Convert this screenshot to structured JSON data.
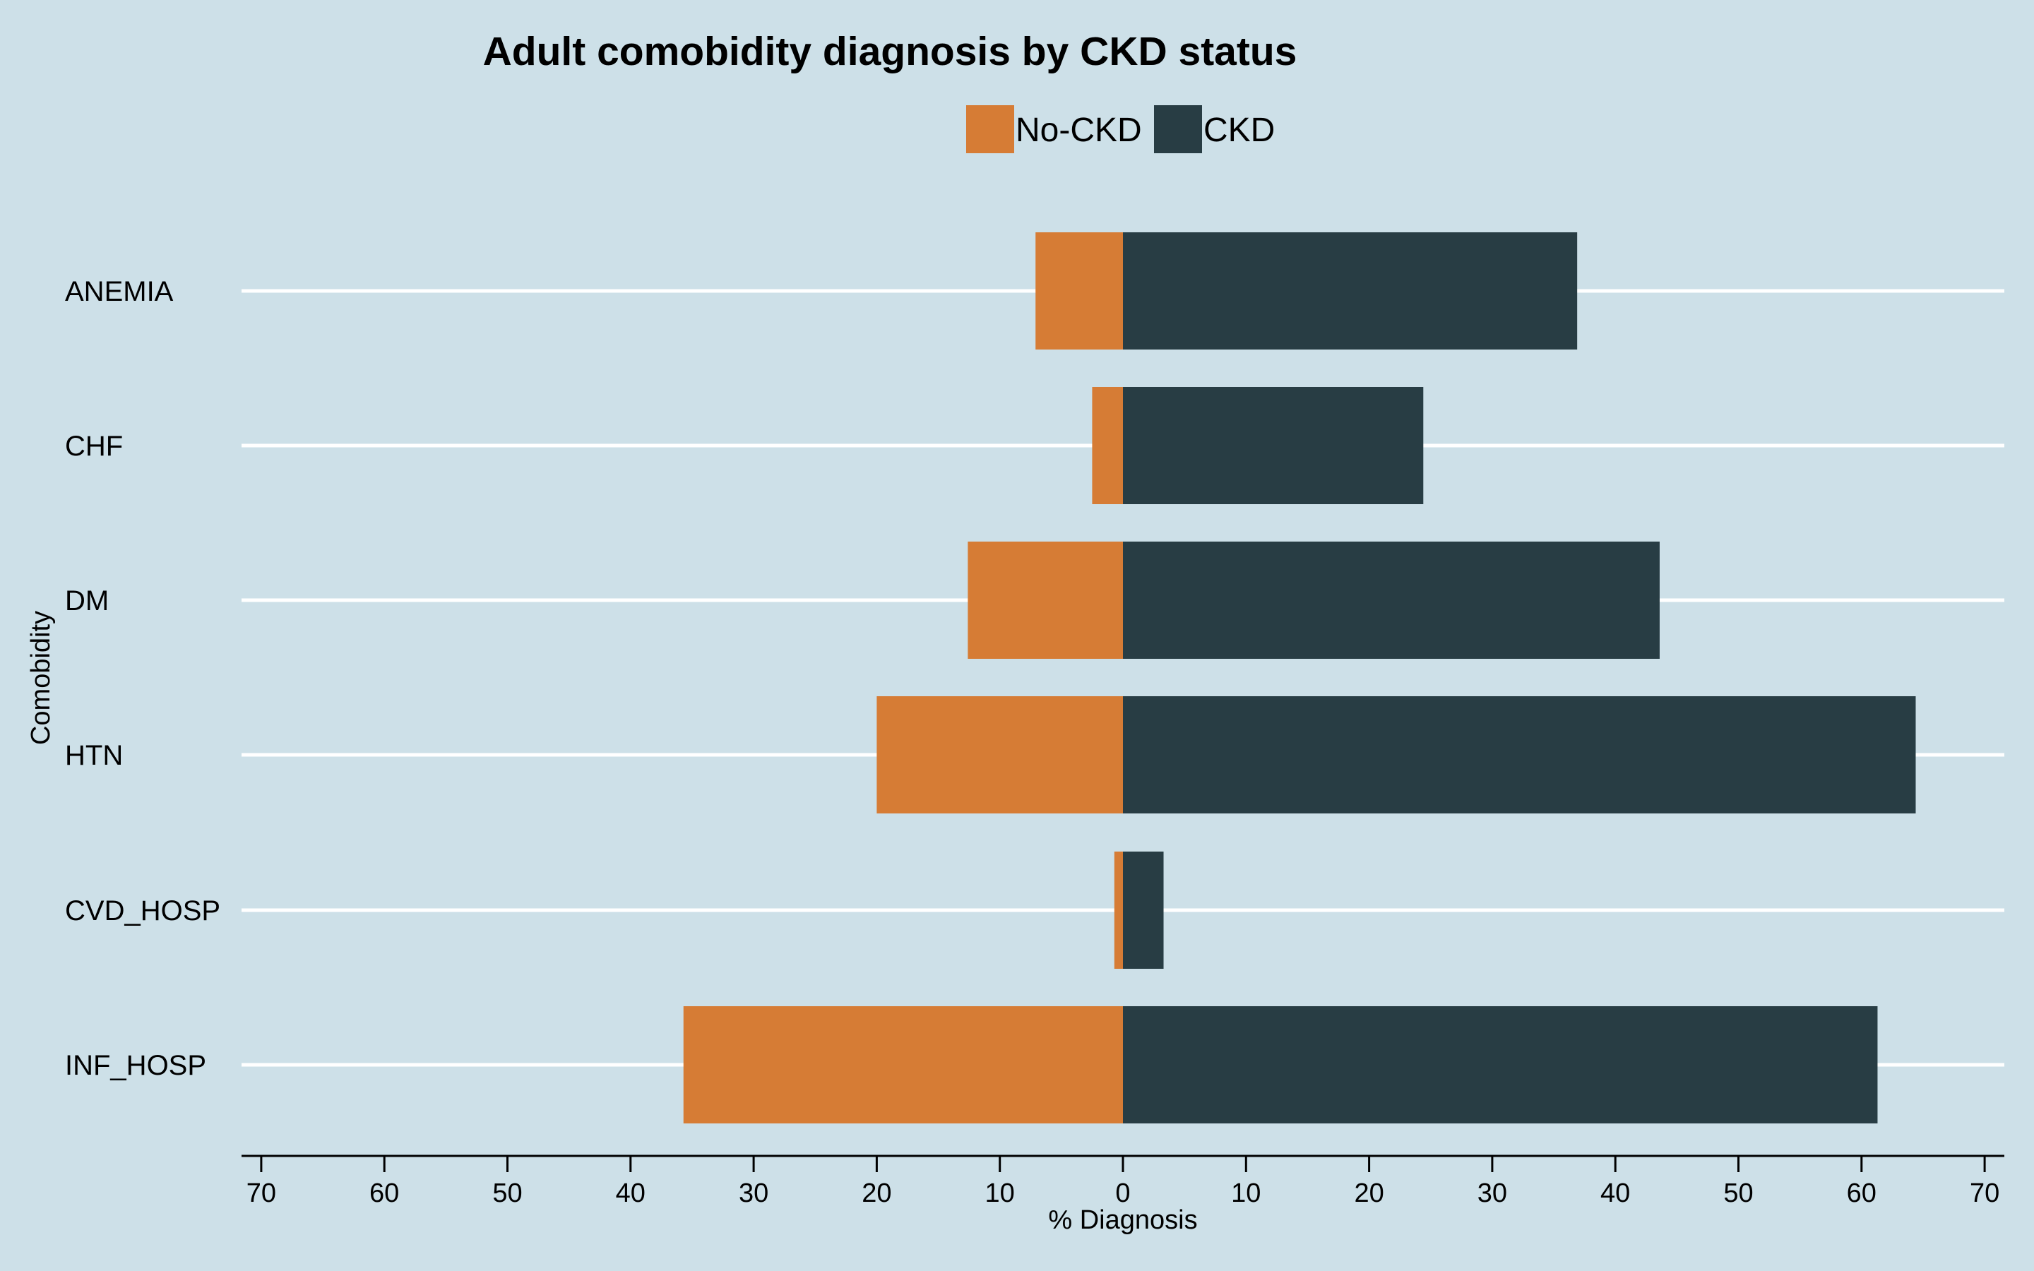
{
  "chart_data": {
    "type": "bar",
    "orientation": "horizontal-diverging",
    "title": "Adult comobidity diagnosis by CKD status",
    "xlabel": "% Diagnosis",
    "ylabel": "Comobidity",
    "xlim": [
      -70,
      70
    ],
    "xticks": [
      -70,
      -60,
      -50,
      -40,
      -30,
      -20,
      -10,
      0,
      10,
      20,
      30,
      40,
      50,
      60,
      70
    ],
    "xtick_labels": [
      "70",
      "60",
      "50",
      "40",
      "30",
      "20",
      "10",
      "0",
      "10",
      "20",
      "30",
      "40",
      "50",
      "60",
      "70"
    ],
    "grid": "horizontal",
    "legend_position": "top",
    "categories": [
      "ANEMIA",
      "CHF",
      "DM",
      "HTN",
      "CVD_HOSP",
      "INF_HOSP"
    ],
    "series": [
      {
        "name": "No-CKD",
        "color": "#d67c35",
        "direction": "left",
        "values": [
          7.1,
          2.5,
          12.6,
          20.0,
          0.7,
          35.7
        ]
      },
      {
        "name": "CKD",
        "color": "#283d44",
        "direction": "right",
        "values": [
          36.9,
          24.4,
          43.6,
          64.4,
          3.3,
          61.3
        ]
      }
    ]
  }
}
